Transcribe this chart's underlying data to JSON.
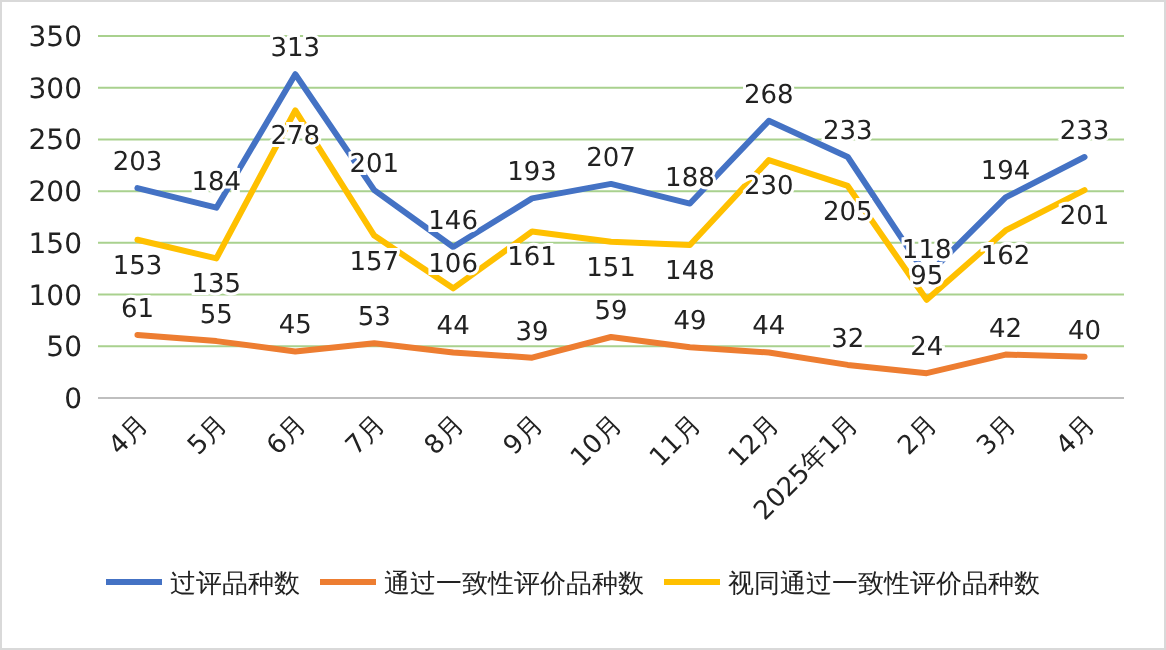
{
  "chart_data": {
    "type": "line",
    "categories": [
      "4月",
      "5月",
      "6月",
      "7月",
      "8月",
      "9月",
      "10月",
      "11月",
      "12月",
      "2025年1月",
      "2月",
      "3月",
      "4月"
    ],
    "series": [
      {
        "name": "过评品种数",
        "color": "#4472c4",
        "values": [
          203,
          184,
          313,
          201,
          146,
          193,
          207,
          188,
          268,
          233,
          118,
          194,
          233
        ]
      },
      {
        "name": "通过一致性评价品种数",
        "color": "#ed7d31",
        "values": [
          61,
          55,
          45,
          53,
          44,
          39,
          59,
          49,
          44,
          32,
          24,
          42,
          40
        ]
      },
      {
        "name": "视同通过一致性评价品种数",
        "color": "#ffc000",
        "values": [
          153,
          135,
          278,
          157,
          106,
          161,
          151,
          148,
          230,
          205,
          95,
          162,
          201
        ]
      }
    ],
    "ylim": [
      0,
      350
    ],
    "yticks": [
      0,
      50,
      100,
      150,
      200,
      250,
      300,
      350
    ],
    "grid": "y",
    "legend": "bottom",
    "data_labels": true,
    "marker": "none",
    "line_style": "solid"
  }
}
